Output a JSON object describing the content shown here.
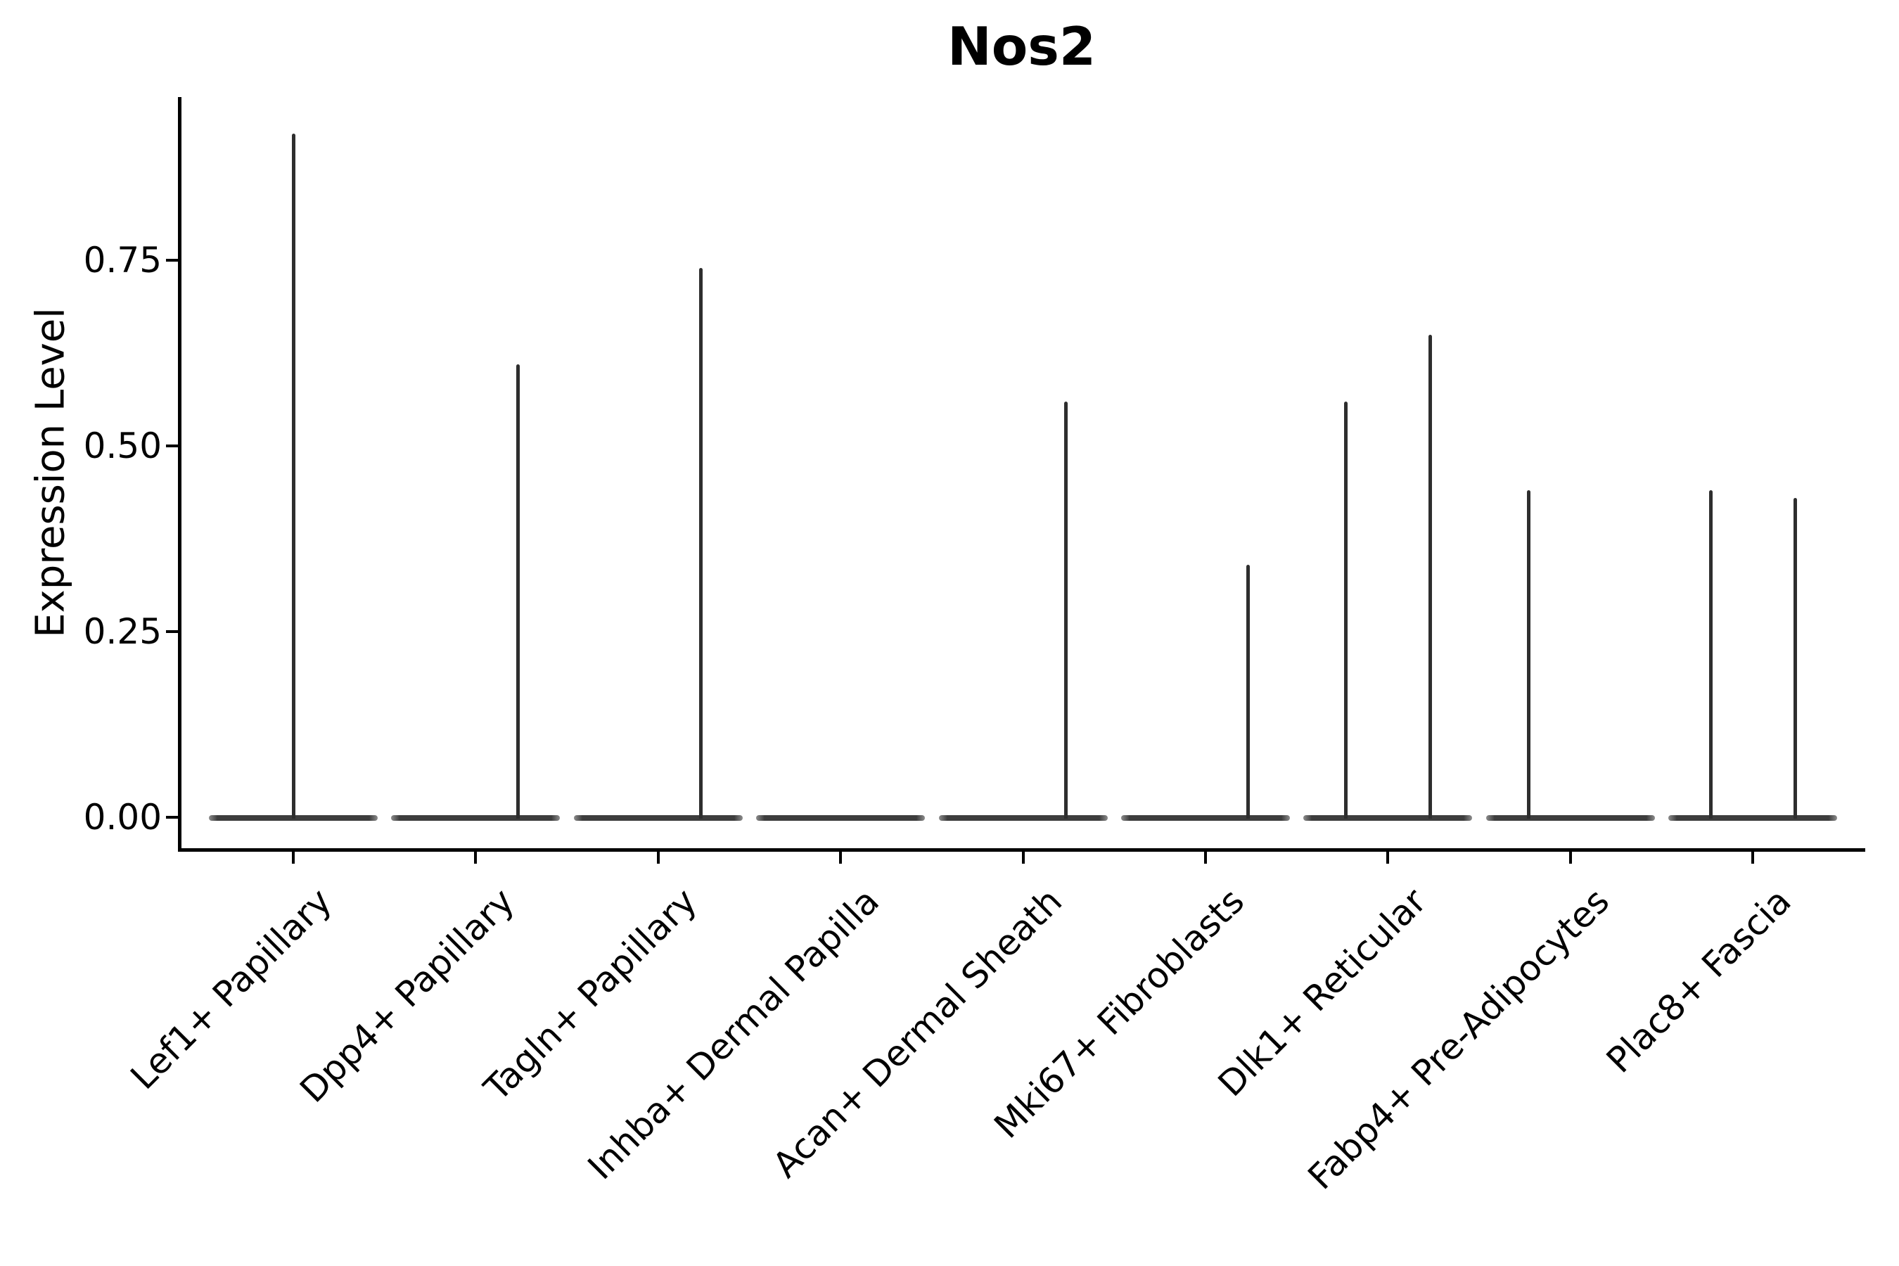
{
  "figure": {
    "title": "Nos2",
    "ylabel": "Expression Level"
  },
  "colors": {
    "background": "#ffffff",
    "text": "#000000",
    "spine": "#000000",
    "violin_body": "#3d3d3d",
    "violin_tail": "#2e2e2e"
  },
  "chart_data": {
    "type": "violin",
    "title": "Nos2",
    "xlabel": "",
    "ylabel": "Expression Level",
    "ylim": [
      -0.04,
      0.97
    ],
    "grid": false,
    "legend": false,
    "yticks": [
      {
        "value": 0.0,
        "label": "0.00"
      },
      {
        "value": 0.25,
        "label": "0.25"
      },
      {
        "value": 0.5,
        "label": "0.50"
      },
      {
        "value": 0.75,
        "label": "0.75"
      }
    ],
    "categories": [
      "Lef1+ Papillary",
      "Dpp4+ Papillary",
      "Tagln+ Papillary",
      "Inhba+ Dermal Papilla",
      "Acan+ Dermal Sheath",
      "Mki67+ Fibroblasts",
      "Dlk1+ Reticular",
      "Fabp4+ Pre-Adipocytes",
      "Plac8+ Fascia"
    ],
    "violins": [
      {
        "category": "Lef1+ Papillary",
        "body_value": 0,
        "tails": [
          {
            "side": "center",
            "max": 0.92
          }
        ]
      },
      {
        "category": "Dpp4+ Papillary",
        "body_value": 0,
        "tails": [
          {
            "side": "right",
            "max": 0.61
          }
        ]
      },
      {
        "category": "Tagln+ Papillary",
        "body_value": 0,
        "tails": [
          {
            "side": "right",
            "max": 0.74
          }
        ]
      },
      {
        "category": "Inhba+ Dermal Papilla",
        "body_value": 0,
        "tails": []
      },
      {
        "category": "Acan+ Dermal Sheath",
        "body_value": 0,
        "tails": [
          {
            "side": "right",
            "max": 0.56
          }
        ]
      },
      {
        "category": "Mki67+ Fibroblasts",
        "body_value": 0,
        "tails": [
          {
            "side": "right",
            "max": 0.34
          }
        ]
      },
      {
        "category": "Dlk1+ Reticular",
        "body_value": 0,
        "tails": [
          {
            "side": "left",
            "max": 0.56
          },
          {
            "side": "right",
            "max": 0.65
          }
        ]
      },
      {
        "category": "Fabp4+ Pre-Adipocytes",
        "body_value": 0,
        "tails": [
          {
            "side": "left",
            "max": 0.44
          }
        ]
      },
      {
        "category": "Plac8+ Fascia",
        "body_value": 0,
        "tails": [
          {
            "side": "left",
            "max": 0.44
          },
          {
            "side": "right",
            "max": 0.43
          }
        ]
      }
    ]
  }
}
